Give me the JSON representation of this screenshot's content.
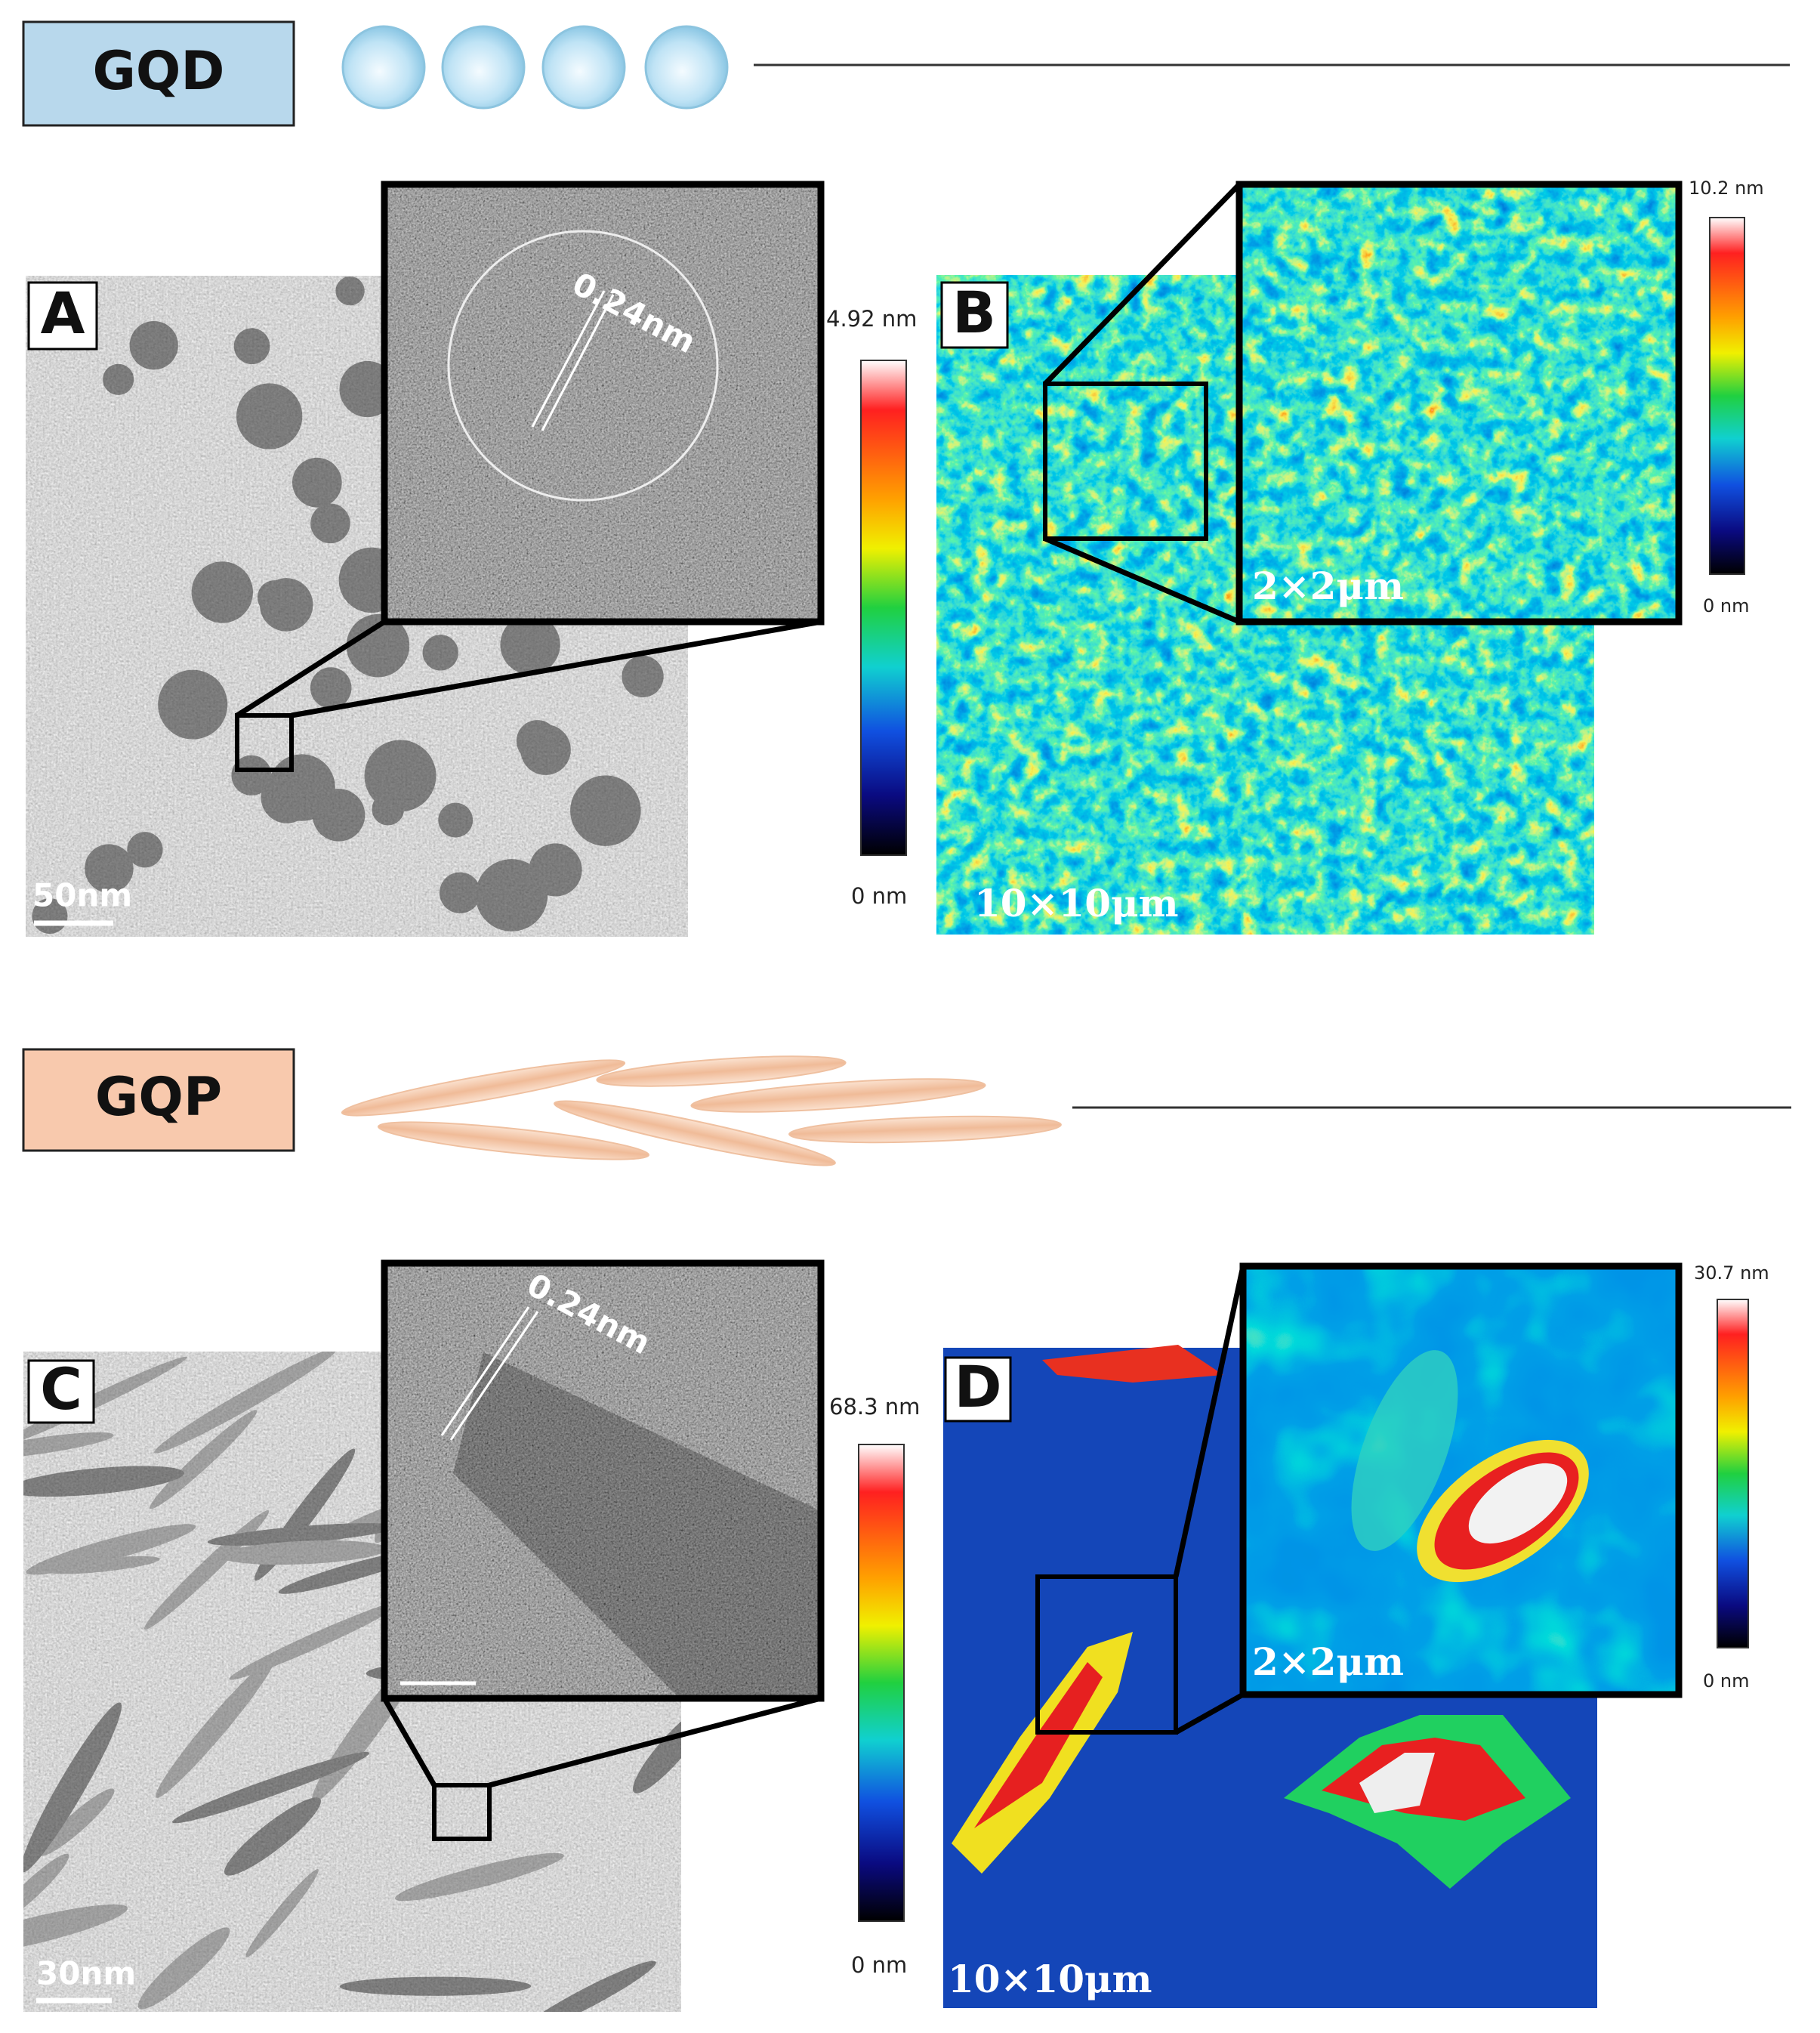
{
  "figure": {
    "sections": [
      {
        "label": "GQD",
        "tem": {
          "letter": "A",
          "scale_bar": "50nm",
          "inset_annotation": "0.24nm"
        },
        "afm": {
          "letter": "B",
          "colorbar_max": "4.92 nm",
          "colorbar_min": "0 nm",
          "scan_size": "10×10μm",
          "inset_scan_size": "2×2μm",
          "inset_colorbar_max": "10.2 nm",
          "inset_colorbar_min": "0 nm"
        }
      },
      {
        "label": "GQP",
        "tem": {
          "letter": "C",
          "scale_bar": "30nm",
          "inset_annotation": "0.24nm"
        },
        "afm": {
          "letter": "D",
          "colorbar_max": "68.3 nm",
          "colorbar_min": "0 nm",
          "scan_size": "10×10μm",
          "inset_scan_size": "2×2μm",
          "inset_colorbar_max": "30.7 nm",
          "inset_colorbar_min": "0 nm"
        }
      }
    ]
  }
}
